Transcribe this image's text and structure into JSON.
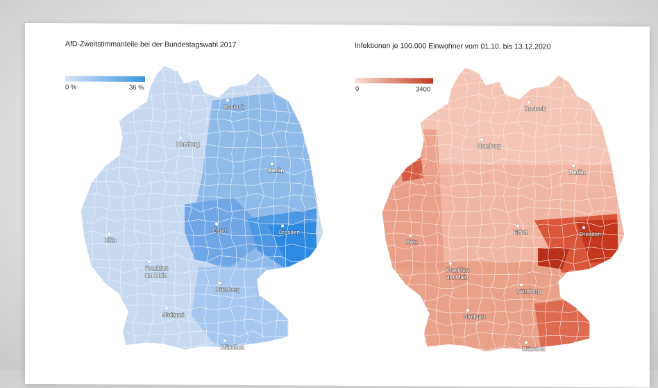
{
  "left_map": {
    "title": "AfD-Zweitstimmanteile bei der Bundestagswahl 2017",
    "legend_min": "0 %",
    "legend_max": "36 %",
    "colors": {
      "low": "#c9daf1",
      "mid": "#9ec3ec",
      "high": "#2f8fe0",
      "peak": "#1b7fd8"
    }
  },
  "right_map": {
    "title": "Infektionen je 100.000 Einwohner vom 01.10. bis 13.12.2020",
    "legend_min": "0",
    "legend_max": "3400",
    "colors": {
      "low": "#f6d6cb",
      "mid": "#eba28c",
      "high": "#de6a4f",
      "peak": "#c1391f"
    }
  },
  "cities": {
    "rostock": "Rostock",
    "hamburg": "Hamburg",
    "berlin": "Berlin",
    "erfurt": "Erfurt",
    "dresden": "Dresden",
    "koeln": "Köln",
    "frankfurt_1": "Frankfurt",
    "frankfurt_2": "am Main",
    "nuernberg": "Nürnberg",
    "stuttgart": "Stuttgart",
    "muenchen": "München"
  }
}
